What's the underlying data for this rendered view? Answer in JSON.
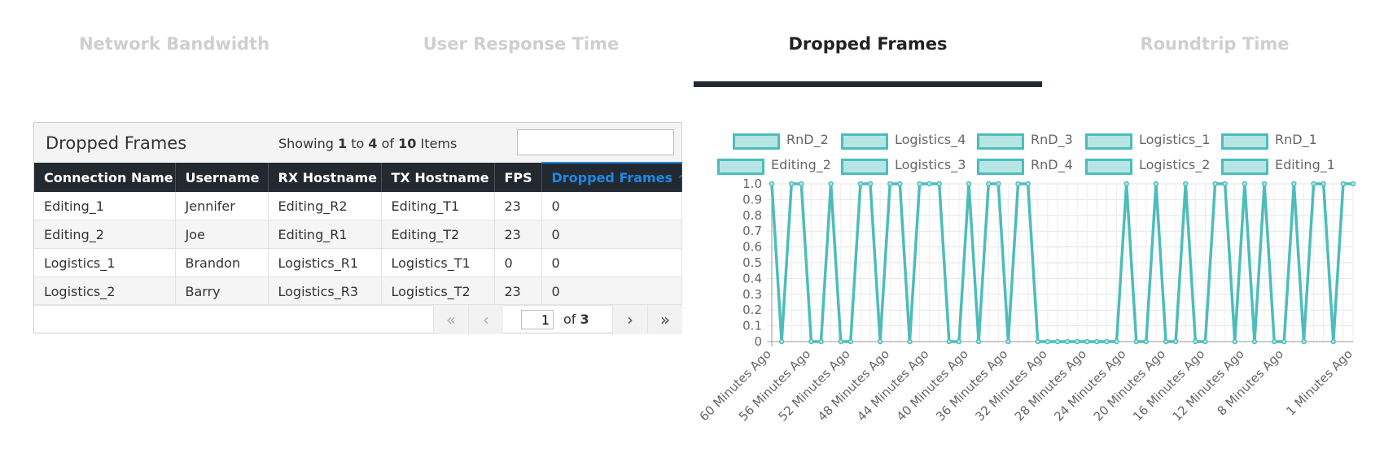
{
  "tabs": [
    {
      "label": "Network Bandwidth",
      "active": false
    },
    {
      "label": "User Response Time",
      "active": false
    },
    {
      "label": "Dropped Frames",
      "active": true
    },
    {
      "label": "Roundtrip Time",
      "active": false
    }
  ],
  "table": {
    "title": "Dropped Frames",
    "showing": {
      "prefix": "Showing",
      "from": "1",
      "to_word": "to",
      "to": "4",
      "of_word": "of",
      "total": "10",
      "suffix": "Items"
    },
    "search": {
      "value": "",
      "placeholder": ""
    },
    "columns": [
      "Connection Name",
      "Username",
      "RX Hostname",
      "TX Hostname",
      "FPS",
      "Dropped Frames"
    ],
    "sort_indicator": "^",
    "rows": [
      [
        "Editing_1",
        "Jennifer",
        "Editing_R2",
        "Editing_T1",
        "23",
        "0"
      ],
      [
        "Editing_2",
        "Joe",
        "Editing_R1",
        "Editing_T2",
        "23",
        "0"
      ],
      [
        "Logistics_1",
        "Brandon",
        "Logistics_R1",
        "Logistics_T1",
        "0",
        "0"
      ],
      [
        "Logistics_2",
        "Barry",
        "Logistics_R3",
        "Logistics_T2",
        "23",
        "0"
      ]
    ],
    "pager": {
      "first": "«",
      "prev": "‹",
      "next": "›",
      "last": "»",
      "page": "1",
      "of_word": "of",
      "pages": "3"
    }
  },
  "chart_data": {
    "type": "line",
    "title": "",
    "color": "#4dbdbb",
    "fill": "#b6e6e4",
    "legend": [
      "RnD_2",
      "Logistics_4",
      "RnD_3",
      "Logistics_1",
      "RnD_1",
      "Editing_2",
      "Logistics_3",
      "RnD_4",
      "Logistics_2",
      "Editing_1"
    ],
    "legend_position": "top",
    "ylim": [
      0,
      1.0
    ],
    "y_ticks": [
      "0",
      "0.1",
      "0.2",
      "0.3",
      "0.4",
      "0.5",
      "0.6",
      "0.7",
      "0.8",
      "0.9",
      "1.0"
    ],
    "x_tick_labels": [
      "60 Minutes Ago",
      "56 Minutes Ago",
      "52 Minutes Ago",
      "48 Minutes Ago",
      "44 Minutes Ago",
      "40 Minutes Ago",
      "36 Minutes Ago",
      "32 Minutes Ago",
      "28 Minutes Ago",
      "24 Minutes Ago",
      "20 Minutes Ago",
      "16 Minutes Ago",
      "12 Minutes Ago",
      "8 Minutes Ago",
      "1 Minutes Ago"
    ],
    "x": [
      60,
      59,
      58,
      57,
      56,
      55,
      54,
      53,
      52,
      51,
      50,
      49,
      48,
      47,
      46,
      45,
      44,
      43,
      42,
      41,
      40,
      39,
      38,
      37,
      36,
      35,
      34,
      33,
      32,
      31,
      30,
      29,
      28,
      27,
      26,
      25,
      24,
      23,
      22,
      21,
      20,
      19,
      18,
      17,
      16,
      15,
      14,
      13,
      12,
      11,
      10,
      9,
      8,
      7,
      6,
      5,
      4,
      3,
      2,
      1
    ],
    "values": [
      1,
      0,
      1,
      1,
      0,
      0,
      1,
      0,
      0,
      1,
      1,
      0,
      1,
      1,
      0,
      1,
      1,
      1,
      0,
      0,
      1,
      0,
      1,
      1,
      0,
      1,
      1,
      0,
      0,
      0,
      0,
      0,
      0,
      0,
      0,
      0,
      1,
      0,
      0,
      1,
      0,
      0,
      1,
      0,
      0,
      1,
      1,
      0,
      1,
      0,
      1,
      0,
      0,
      1,
      0,
      1,
      1,
      0,
      1,
      1
    ],
    "grid": true
  }
}
